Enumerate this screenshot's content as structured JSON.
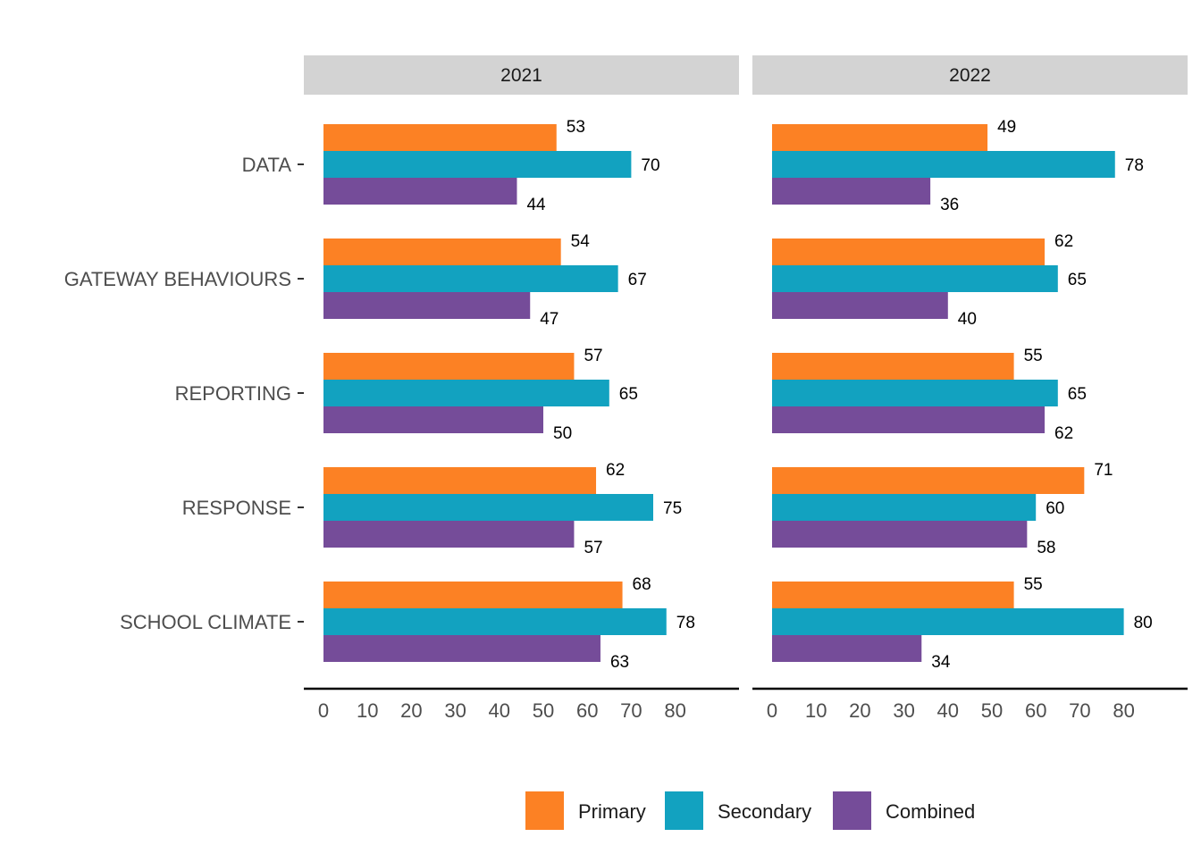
{
  "chart_data": {
    "type": "bar",
    "orientation": "horizontal",
    "facets": [
      "2021",
      "2022"
    ],
    "categories": [
      "DATA",
      "GATEWAY BEHAVIOURS",
      "REPORTING",
      "RESPONSE",
      "SCHOOL CLIMATE"
    ],
    "series": [
      {
        "name": "Primary",
        "color": "#fc8124",
        "values": {
          "2021": [
            53,
            54,
            57,
            62,
            68
          ],
          "2022": [
            49,
            62,
            55,
            71,
            55
          ]
        }
      },
      {
        "name": "Secondary",
        "color": "#12a2c0",
        "values": {
          "2021": [
            70,
            67,
            65,
            75,
            78
          ],
          "2022": [
            78,
            65,
            65,
            60,
            80
          ]
        }
      },
      {
        "name": "Combined",
        "color": "#754c99",
        "values": {
          "2021": [
            44,
            47,
            50,
            57,
            63
          ],
          "2022": [
            36,
            40,
            62,
            58,
            34
          ]
        }
      }
    ],
    "xticks": [
      0,
      10,
      20,
      30,
      40,
      50,
      60,
      70,
      80
    ],
    "xlim": [
      0,
      90
    ],
    "grid": false,
    "legend_position": "bottom",
    "data_labels": true
  },
  "colors": {
    "strip_background": "#d3d3d3",
    "axis_line": "#000000"
  }
}
